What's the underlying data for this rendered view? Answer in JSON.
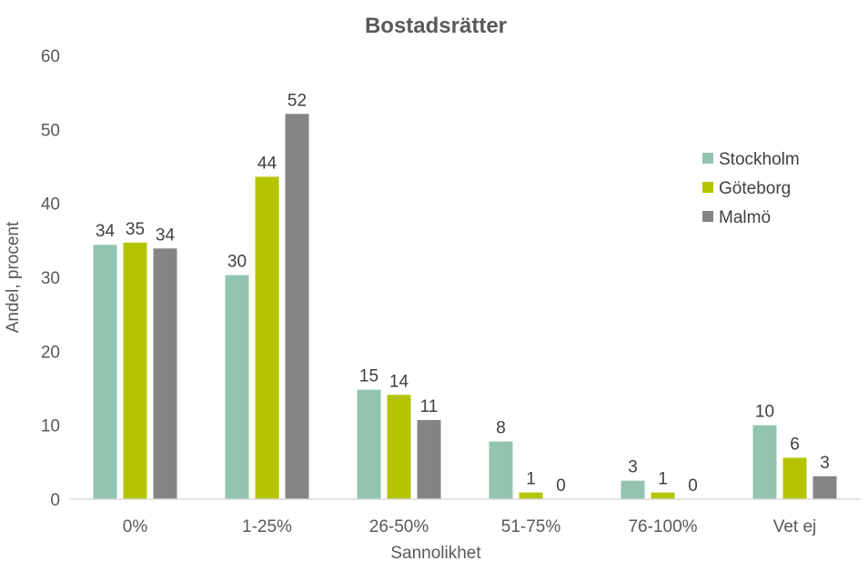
{
  "chart_data": {
    "type": "bar",
    "title": "Bostadsrätter",
    "xlabel": "Sannolikhet",
    "ylabel": "Andel, procent",
    "categories": [
      "0%",
      "1-25%",
      "26-50%",
      "51-75%",
      "76-100%",
      "Vet ej"
    ],
    "series": [
      {
        "name": "Stockholm",
        "color": "#93c4b0",
        "values": [
          34.4,
          30.3,
          14.8,
          7.8,
          2.5,
          10.0
        ],
        "labels": [
          "34",
          "30",
          "15",
          "8",
          "3",
          "10"
        ]
      },
      {
        "name": "Göteborg",
        "color": "#b5c400",
        "values": [
          34.7,
          43.6,
          14.1,
          0.9,
          0.9,
          5.6
        ],
        "labels": [
          "35",
          "44",
          "14",
          "1",
          "1",
          "6"
        ]
      },
      {
        "name": "Malmö",
        "color": "#868384",
        "values": [
          33.9,
          52.1,
          10.7,
          0,
          0,
          3.1
        ],
        "labels": [
          "34",
          "52",
          "11",
          "0",
          "0",
          "3"
        ]
      }
    ],
    "ylim": [
      0,
      60
    ],
    "yticks": [
      0,
      10,
      20,
      30,
      40,
      50,
      60
    ],
    "grid": false,
    "legend_position": "top-right"
  }
}
